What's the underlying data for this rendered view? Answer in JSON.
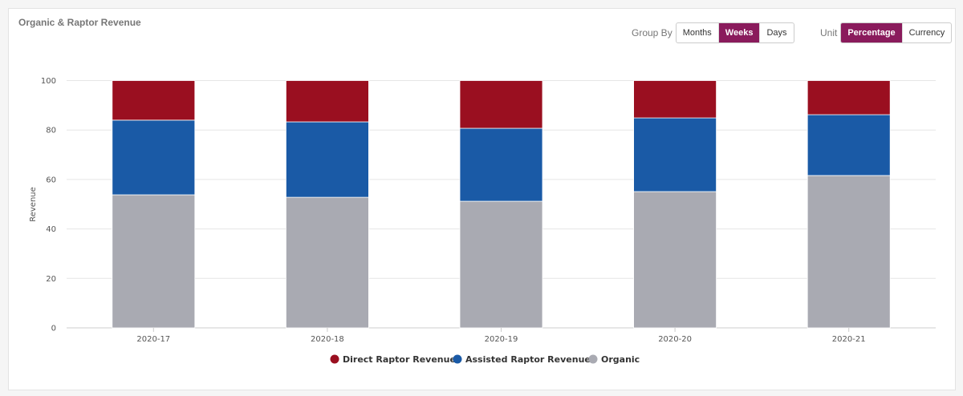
{
  "title": "Organic & Raptor Revenue",
  "group_by": {
    "label": "Group By",
    "options": [
      "Months",
      "Weeks",
      "Days"
    ],
    "selected": "Weeks"
  },
  "unit": {
    "label": "Unit",
    "options": [
      "Percentage",
      "Currency"
    ],
    "selected": "Percentage"
  },
  "chart_data": {
    "type": "bar",
    "stacked": true,
    "categories": [
      "2020-17",
      "2020-18",
      "2020-19",
      "2020-20",
      "2020-21"
    ],
    "ylabel": "Revenue",
    "xlabel": "",
    "ylim": [
      0,
      100
    ],
    "yticks": [
      0,
      20,
      40,
      60,
      80,
      100
    ],
    "grid": true,
    "legend": "bottom",
    "series": [
      {
        "name": "Organic",
        "color": "#a9aab2",
        "values": [
          53.8,
          52.8,
          51.2,
          55.1,
          61.6
        ]
      },
      {
        "name": "Assisted Raptor Revenue",
        "color": "#1a5aa6",
        "values": [
          30.2,
          30.5,
          29.5,
          29.8,
          24.6
        ]
      },
      {
        "name": "Direct Raptor Revenue",
        "color": "#9a0f20",
        "values": [
          16.0,
          16.7,
          19.3,
          15.1,
          13.8
        ]
      }
    ],
    "legend_order": [
      "Direct Raptor Revenue",
      "Assisted Raptor Revenue",
      "Organic"
    ]
  }
}
